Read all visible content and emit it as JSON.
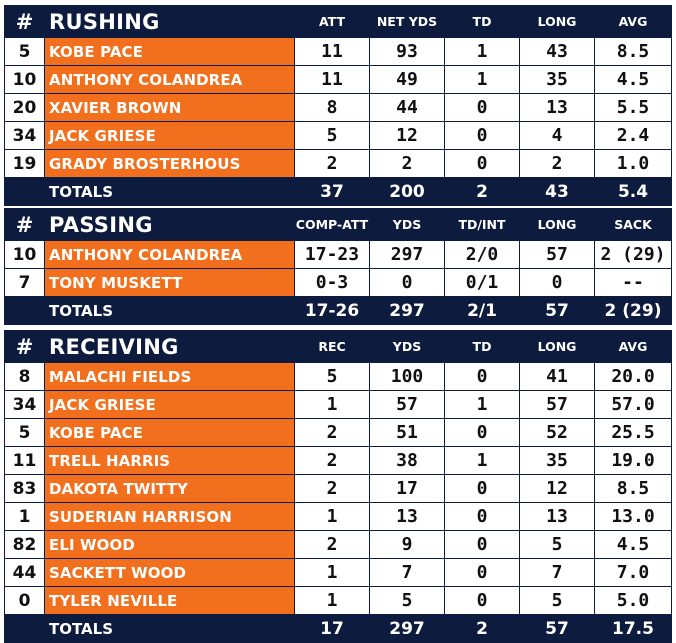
{
  "rushing": {
    "hash": "#",
    "title": "RUSHING",
    "columns": [
      "ATT",
      "NET YDS",
      "TD",
      "LONG",
      "AVG"
    ],
    "rows": [
      {
        "num": "5",
        "name": "KOBE PACE",
        "stats": [
          "11",
          "93",
          "1",
          "43",
          "8.5"
        ]
      },
      {
        "num": "10",
        "name": "ANTHONY COLANDREA",
        "stats": [
          "11",
          "49",
          "1",
          "35",
          "4.5"
        ]
      },
      {
        "num": "20",
        "name": "XAVIER BROWN",
        "stats": [
          "8",
          "44",
          "0",
          "13",
          "5.5"
        ]
      },
      {
        "num": "34",
        "name": "JACK GRIESE",
        "stats": [
          "5",
          "12",
          "0",
          "4",
          "2.4"
        ]
      },
      {
        "num": "19",
        "name": "GRADY BROSTERHOUS",
        "stats": [
          "2",
          "2",
          "0",
          "2",
          "1.0"
        ]
      }
    ],
    "totals": {
      "label": "TOTALS",
      "stats": [
        "37",
        "200",
        "2",
        "43",
        "5.4"
      ]
    }
  },
  "passing": {
    "hash": "#",
    "title": "PASSING",
    "columns": [
      "COMP-ATT",
      "YDS",
      "TD/INT",
      "LONG",
      "SACK"
    ],
    "rows": [
      {
        "num": "10",
        "name": "ANTHONY COLANDREA",
        "stats": [
          "17-23",
          "297",
          "2/0",
          "57",
          "2 (29)"
        ]
      },
      {
        "num": "7",
        "name": "TONY MUSKETT",
        "stats": [
          "0-3",
          "0",
          "0/1",
          "0",
          "--"
        ]
      }
    ],
    "totals": {
      "label": "TOTALS",
      "stats": [
        "17-26",
        "297",
        "2/1",
        "57",
        "2 (29)"
      ]
    }
  },
  "receiving": {
    "hash": "#",
    "title": "RECEIVING",
    "columns": [
      "REC",
      "YDS",
      "TD",
      "LONG",
      "AVG"
    ],
    "rows": [
      {
        "num": "8",
        "name": "MALACHI FIELDS",
        "stats": [
          "5",
          "100",
          "0",
          "41",
          "20.0"
        ]
      },
      {
        "num": "34",
        "name": "JACK GRIESE",
        "stats": [
          "1",
          "57",
          "1",
          "57",
          "57.0"
        ]
      },
      {
        "num": "5",
        "name": "KOBE PACE",
        "stats": [
          "2",
          "51",
          "0",
          "52",
          "25.5"
        ]
      },
      {
        "num": "11",
        "name": "TRELL HARRIS",
        "stats": [
          "2",
          "38",
          "1",
          "35",
          "19.0"
        ]
      },
      {
        "num": "83",
        "name": "DAKOTA TWITTY",
        "stats": [
          "2",
          "17",
          "0",
          "12",
          "8.5"
        ]
      },
      {
        "num": "1",
        "name": "SUDERIAN HARRISON",
        "stats": [
          "1",
          "13",
          "0",
          "13",
          "13.0"
        ]
      },
      {
        "num": "82",
        "name": "ELI WOOD",
        "stats": [
          "2",
          "9",
          "0",
          "5",
          "4.5"
        ]
      },
      {
        "num": "44",
        "name": "SACKETT WOOD",
        "stats": [
          "1",
          "7",
          "0",
          "7",
          "7.0"
        ]
      },
      {
        "num": "0",
        "name": "TYLER NEVILLE",
        "stats": [
          "1",
          "5",
          "0",
          "5",
          "5.0"
        ]
      }
    ],
    "totals": {
      "label": "TOTALS",
      "stats": [
        "17",
        "297",
        "2",
        "57",
        "17.5"
      ]
    }
  },
  "colors": {
    "navy": "#0d1b3e",
    "orange": "#f26f1d",
    "white": "#ffffff"
  }
}
